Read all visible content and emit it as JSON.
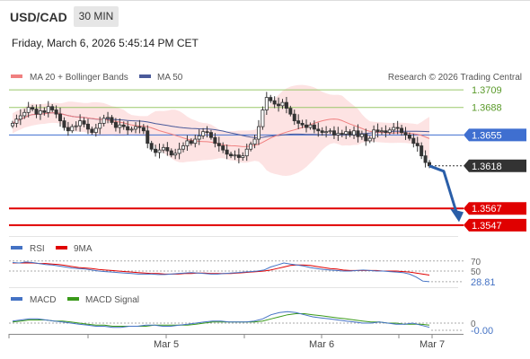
{
  "header": {
    "symbol": "USD/CAD",
    "timeframe": "30 MIN",
    "datetime": "Friday, March 6, 2026 5:45:14 PM CET"
  },
  "legend": {
    "ma20": "MA 20 + Bollinger Bands",
    "ma50": "MA 50",
    "credit": "Research © 2026 Trading Central"
  },
  "colors": {
    "candle": "#333333",
    "bollinger_fill": "#fde0e0",
    "ma20": "#f08080",
    "ma50": "#4a5a9a",
    "resistance": "#9ac86a",
    "pivot": "#3f6fd0",
    "support": "#e00000",
    "last_price": "#333333",
    "arrow": "#2a5ea8",
    "rsi": "#4472c4",
    "rsi_ma": "#e00000",
    "macd": "#4472c4",
    "macd_signal": "#3a9a1a"
  },
  "chart_data": [
    {
      "type": "candlestick",
      "panel": "price",
      "ylim": [
        1.3535,
        1.3735
      ],
      "x_ticks": [
        "Mar 5",
        "Mar 6",
        "Mar 7"
      ],
      "series": [
        {
          "name": "MA 20 + Bollinger Bands"
        },
        {
          "name": "MA 50"
        }
      ],
      "levels": [
        {
          "value": 1.3709,
          "label": "1.3709",
          "kind": "resistance"
        },
        {
          "value": 1.3688,
          "label": "1.3688",
          "kind": "resistance"
        },
        {
          "value": 1.3655,
          "label": "1.3655",
          "kind": "pivot"
        },
        {
          "value": 1.3618,
          "label": "1.3618",
          "kind": "last"
        },
        {
          "value": 1.3567,
          "label": "1.3567",
          "kind": "support"
        },
        {
          "value": 1.3547,
          "label": "1.3547",
          "kind": "support"
        }
      ],
      "last_price": 1.3618,
      "target_arrow": {
        "from": 1.3618,
        "to": 1.3554
      },
      "closes": [
        1.3669,
        1.3674,
        1.3678,
        1.3682,
        1.3688,
        1.3686,
        1.368,
        1.3684,
        1.3682,
        1.3689,
        1.3685,
        1.368,
        1.3672,
        1.3664,
        1.366,
        1.3665,
        1.3666,
        1.3672,
        1.3668,
        1.3662,
        1.3658,
        1.3663,
        1.3669,
        1.3675,
        1.3676,
        1.367,
        1.3664,
        1.3667,
        1.3665,
        1.3661,
        1.3662,
        1.3665,
        1.3664,
        1.366,
        1.3645,
        1.3638,
        1.3634,
        1.3637,
        1.364,
        1.3636,
        1.3631,
        1.3633,
        1.3638,
        1.3642,
        1.3648,
        1.3645,
        1.365,
        1.3654,
        1.3659,
        1.3658,
        1.3652,
        1.3645,
        1.3642,
        1.3637,
        1.3632,
        1.363,
        1.3631,
        1.3628,
        1.363,
        1.3638,
        1.3644,
        1.365,
        1.3665,
        1.3685,
        1.37,
        1.3696,
        1.3692,
        1.369,
        1.3694,
        1.3687,
        1.368,
        1.3672,
        1.3669,
        1.3667,
        1.3664,
        1.3667,
        1.3662,
        1.366,
        1.3658,
        1.3659,
        1.366,
        1.3655,
        1.3657,
        1.3656,
        1.3659,
        1.3655,
        1.366,
        1.3653,
        1.3656,
        1.3648,
        1.3651,
        1.3661,
        1.3659,
        1.366,
        1.3658,
        1.3661,
        1.3664,
        1.3663,
        1.3658,
        1.3655,
        1.3651,
        1.3645,
        1.3642,
        1.363,
        1.3622,
        1.3618
      ]
    },
    {
      "type": "line",
      "panel": "rsi",
      "series": [
        {
          "name": "RSI"
        },
        {
          "name": "9MA"
        }
      ],
      "levels": [
        70,
        50
      ],
      "level_labels": [
        "70",
        "50"
      ],
      "last_value": 28.81,
      "last_label": "28.81",
      "rsi": [
        67,
        66,
        68,
        67,
        65,
        63,
        62,
        60,
        58,
        56,
        55,
        54,
        52,
        50,
        49,
        48,
        47,
        46,
        45,
        44,
        44,
        44,
        43,
        43,
        44,
        45,
        46,
        47,
        46,
        45,
        44,
        44,
        45,
        46,
        47,
        48,
        49,
        50,
        52,
        58,
        62,
        66,
        64,
        62,
        60,
        57,
        55,
        53,
        52,
        51,
        50,
        50,
        51,
        52,
        51,
        50,
        50,
        49,
        48,
        47,
        44,
        38,
        30,
        28.81
      ],
      "rsi_ma": [
        66,
        66,
        66,
        66,
        65,
        65,
        64,
        63,
        61,
        59,
        57,
        56,
        55,
        53,
        52,
        51,
        50,
        49,
        48,
        47,
        46,
        45,
        45,
        44,
        44,
        44,
        45,
        45,
        46,
        46,
        45,
        45,
        45,
        45,
        46,
        47,
        48,
        49,
        50,
        52,
        55,
        58,
        61,
        62,
        62,
        61,
        59,
        57,
        55,
        54,
        52,
        51,
        51,
        51,
        51,
        51,
        50,
        50,
        50,
        49,
        48,
        46,
        44,
        42
      ]
    },
    {
      "type": "line",
      "panel": "macd",
      "series": [
        {
          "name": "MACD"
        },
        {
          "name": "MACD Signal"
        }
      ],
      "levels": [
        0
      ],
      "level_labels": [
        "0"
      ],
      "last_value": -0.0,
      "last_label": "-0.00",
      "macd": [
        0.0002,
        0.0003,
        0.0004,
        0.0004,
        0.0003,
        0.0002,
        0.0001,
        0.0,
        -0.0001,
        -0.0002,
        -0.0003,
        -0.0003,
        -0.0004,
        -0.0004,
        -0.0003,
        -0.0003,
        -0.0002,
        -0.0002,
        -0.0003,
        -0.0003,
        -0.0002,
        -0.0001,
        0.0,
        0.0001,
        0.0002,
        0.0002,
        0.0001,
        0.0001,
        0.0001,
        0.0002,
        0.0004,
        0.0008,
        0.001,
        0.0011,
        0.001,
        0.0008,
        0.0006,
        0.0005,
        0.0004,
        0.0003,
        0.0002,
        0.0001,
        0.0,
        0.0,
        0.0001,
        0.0,
        -0.0001,
        -0.0001,
        0.0,
        -0.0002,
        -0.0004
      ],
      "signal": [
        0.0001,
        0.0002,
        0.0003,
        0.0003,
        0.0003,
        0.0002,
        0.0002,
        0.0001,
        0.0,
        -0.0001,
        -0.0002,
        -0.0002,
        -0.0003,
        -0.0003,
        -0.0003,
        -0.0003,
        -0.0003,
        -0.0002,
        -0.0002,
        -0.0002,
        -0.0002,
        -0.0002,
        -0.0001,
        0.0,
        0.0001,
        0.0001,
        0.0001,
        0.0001,
        0.0001,
        0.0001,
        0.0002,
        0.0004,
        0.0006,
        0.0008,
        0.0009,
        0.0009,
        0.0008,
        0.0007,
        0.0006,
        0.0005,
        0.0004,
        0.0003,
        0.0002,
        0.0001,
        0.0001,
        0.0,
        0.0,
        -0.0001,
        -0.0001,
        -0.0001,
        -0.0002
      ]
    }
  ],
  "indicators": {
    "rsi_legend": "RSI",
    "rsi_ma_legend": "9MA",
    "macd_legend": "MACD",
    "macd_signal_legend": "MACD Signal"
  }
}
